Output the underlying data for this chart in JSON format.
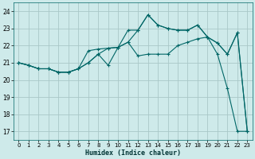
{
  "xlabel": "Humidex (Indice chaleur)",
  "background_color": "#ceeaea",
  "grid_color": "#aac8c8",
  "line_color": "#006666",
  "xlim": [
    -0.5,
    23.5
  ],
  "ylim": [
    16.5,
    24.5
  ],
  "yticks": [
    17,
    18,
    19,
    20,
    21,
    22,
    23,
    24
  ],
  "xticks": [
    0,
    1,
    2,
    3,
    4,
    5,
    6,
    7,
    8,
    9,
    10,
    11,
    12,
    13,
    14,
    15,
    16,
    17,
    18,
    19,
    20,
    21,
    22,
    23
  ],
  "series1_x": [
    0,
    1,
    2,
    3,
    4,
    5,
    6,
    7,
    8,
    9,
    10,
    11,
    12,
    13,
    14,
    15,
    16,
    17,
    18,
    19,
    20,
    21,
    22,
    23
  ],
  "series1_y": [
    21.0,
    20.85,
    20.65,
    20.65,
    20.45,
    20.45,
    20.65,
    21.0,
    21.5,
    21.85,
    21.9,
    22.2,
    21.4,
    21.5,
    21.5,
    21.5,
    22.0,
    22.2,
    22.4,
    22.5,
    22.15,
    21.5,
    22.75,
    17.0
  ],
  "series2_x": [
    0,
    1,
    2,
    3,
    4,
    5,
    6,
    7,
    8,
    9,
    10,
    11,
    12,
    13,
    14,
    15,
    16,
    17,
    18,
    19,
    20,
    21,
    22,
    23
  ],
  "series2_y": [
    21.0,
    20.85,
    20.65,
    20.65,
    20.45,
    20.45,
    20.65,
    21.7,
    21.8,
    21.85,
    21.9,
    22.9,
    22.9,
    23.8,
    23.2,
    23.0,
    22.9,
    22.9,
    23.2,
    22.5,
    21.5,
    19.5,
    17.0,
    17.0
  ],
  "series3_x": [
    0,
    1,
    2,
    3,
    4,
    5,
    6,
    7,
    8,
    9,
    10,
    11,
    12,
    13,
    14,
    15,
    16,
    17,
    18,
    19,
    20,
    21,
    22,
    23
  ],
  "series3_y": [
    21.0,
    20.85,
    20.65,
    20.65,
    20.45,
    20.45,
    20.65,
    21.0,
    21.5,
    20.85,
    21.9,
    22.2,
    22.9,
    23.8,
    23.2,
    23.0,
    22.9,
    22.9,
    23.2,
    22.5,
    22.15,
    21.5,
    22.75,
    17.0
  ]
}
